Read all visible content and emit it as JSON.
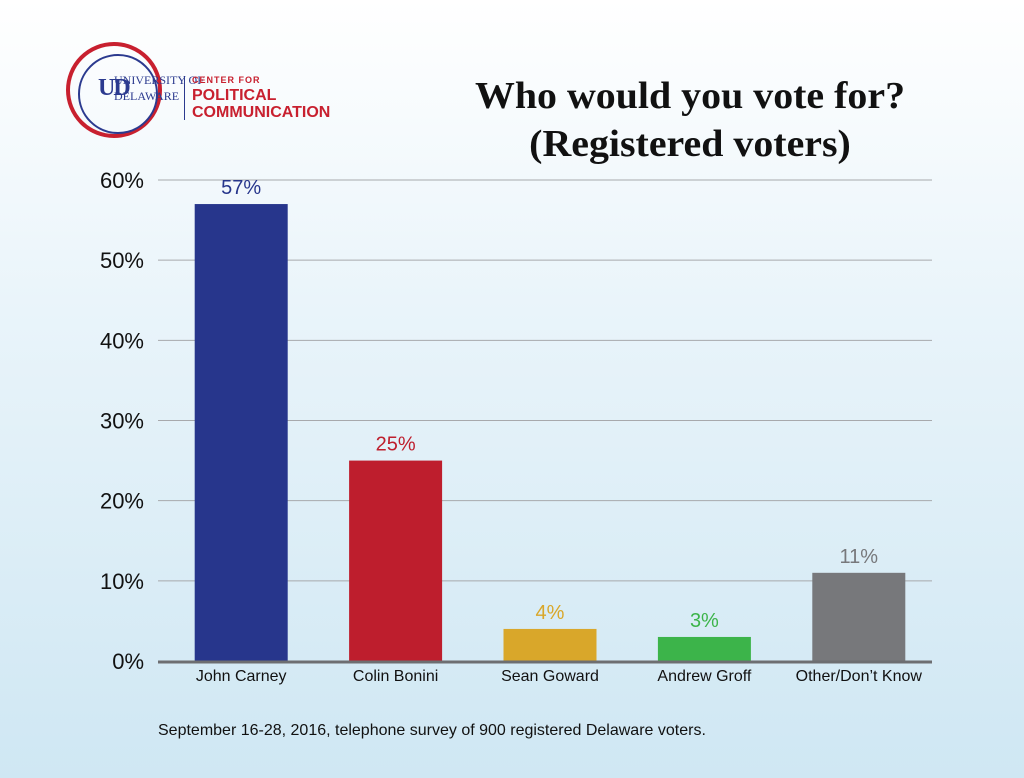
{
  "logo": {
    "university": "UNIVERSITY OF",
    "delaware": "DELAWARE",
    "monogram": "UD",
    "center_for": "CENTER FOR",
    "political": "POLITICAL",
    "communication": "COMMUNICATION"
  },
  "title_line1": "Who would you vote for?",
  "title_line2": "(Registered voters)",
  "footnote": "September 16-28, 2016, telephone survey of 900 registered Delaware voters.",
  "chart_data": {
    "type": "bar",
    "title": "Who would you vote for? (Registered voters)",
    "xlabel": "",
    "ylabel": "",
    "ylim": [
      0,
      60
    ],
    "yticks": [
      0,
      10,
      20,
      30,
      40,
      50,
      60
    ],
    "ytick_labels": [
      "0%",
      "10%",
      "20%",
      "30%",
      "40%",
      "50%",
      "60%"
    ],
    "grid": true,
    "categories": [
      "John Carney",
      "Colin Bonini",
      "Sean Goward",
      "Andrew Groff",
      "Other/Don’t Know"
    ],
    "values": [
      57,
      25,
      4,
      3,
      11
    ],
    "data_labels": [
      "57%",
      "25%",
      "4%",
      "3%",
      "11%"
    ],
    "colors": [
      "#27368c",
      "#be1e2d",
      "#d9a72a",
      "#3cb44a",
      "#77787b"
    ]
  }
}
